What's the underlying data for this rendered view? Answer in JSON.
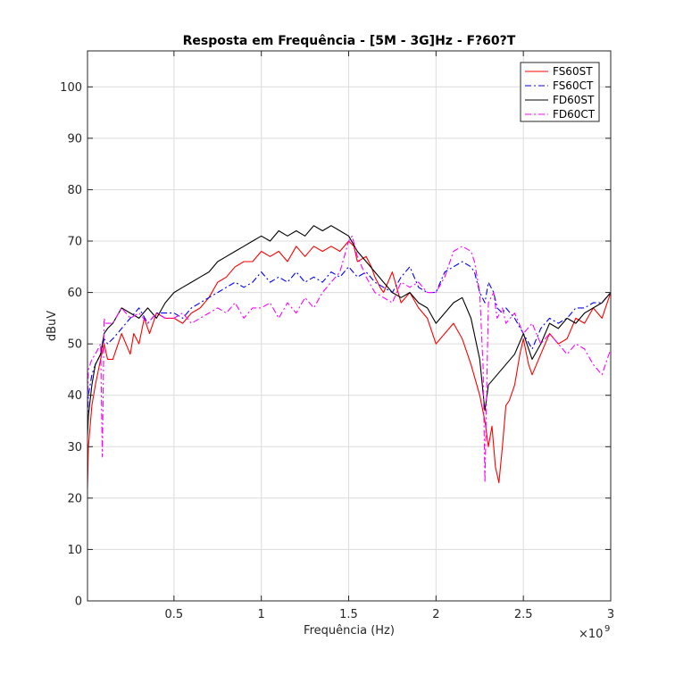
{
  "chart_data": {
    "type": "line",
    "title": "Resposta em Frequência - [5M - 3G]Hz - F?60?T",
    "xlabel": "Frequência (Hz)",
    "ylabel": "dBuV",
    "x_exponent_label": "×10",
    "x_exponent_power": "9",
    "xlim": [
      0.005,
      3.0
    ],
    "ylim": [
      0,
      107
    ],
    "x_ticks": [
      0.5,
      1,
      1.5,
      2,
      2.5,
      3
    ],
    "x_tick_labels": [
      "0.5",
      "1",
      "1.5",
      "2",
      "2.5",
      "3"
    ],
    "y_ticks": [
      0,
      10,
      20,
      30,
      40,
      50,
      60,
      70,
      80,
      90,
      100
    ],
    "y_tick_labels": [
      "0",
      "10",
      "20",
      "30",
      "40",
      "50",
      "60",
      "70",
      "80",
      "90",
      "100"
    ],
    "grid": true,
    "legend_position": "top-right",
    "series": [
      {
        "name": "FS60ST",
        "color": "#ff0000",
        "dash": "solid",
        "x": [
          0.005,
          0.01,
          0.03,
          0.05,
          0.08,
          0.1,
          0.12,
          0.15,
          0.2,
          0.25,
          0.27,
          0.3,
          0.33,
          0.36,
          0.4,
          0.45,
          0.5,
          0.55,
          0.6,
          0.65,
          0.7,
          0.75,
          0.8,
          0.85,
          0.9,
          0.95,
          1.0,
          1.05,
          1.1,
          1.15,
          1.2,
          1.25,
          1.3,
          1.35,
          1.4,
          1.45,
          1.5,
          1.53,
          1.55,
          1.6,
          1.63,
          1.65,
          1.68,
          1.7,
          1.75,
          1.8,
          1.85,
          1.9,
          1.95,
          2.0,
          2.05,
          2.1,
          2.15,
          2.2,
          2.25,
          2.28,
          2.3,
          2.32,
          2.34,
          2.36,
          2.38,
          2.4,
          2.42,
          2.45,
          2.48,
          2.5,
          2.53,
          2.55,
          2.6,
          2.65,
          2.7,
          2.75,
          2.8,
          2.85,
          2.9,
          2.95,
          3.0
        ],
        "y": [
          22,
          30,
          38,
          42,
          47,
          50,
          47,
          47,
          52,
          48,
          52,
          50,
          55,
          52,
          56,
          55,
          55,
          54,
          56,
          57,
          59,
          62,
          63,
          65,
          66,
          66,
          68,
          67,
          68,
          66,
          69,
          67,
          69,
          68,
          69,
          68,
          70,
          69,
          66,
          67,
          65,
          63,
          61,
          60,
          64,
          58,
          60,
          57,
          55,
          50,
          52,
          54,
          51,
          46,
          40,
          35,
          30,
          34,
          26,
          23,
          30,
          38,
          39,
          42,
          48,
          51,
          46,
          44,
          48,
          52,
          50,
          51,
          55,
          54,
          57,
          55,
          60
        ]
      },
      {
        "name": "FS60CT",
        "color": "#0000ff",
        "dash": "dashdot",
        "x": [
          0.005,
          0.01,
          0.03,
          0.05,
          0.08,
          0.1,
          0.12,
          0.15,
          0.2,
          0.25,
          0.3,
          0.35,
          0.4,
          0.45,
          0.5,
          0.55,
          0.6,
          0.65,
          0.7,
          0.75,
          0.8,
          0.85,
          0.9,
          0.95,
          1.0,
          1.05,
          1.1,
          1.15,
          1.2,
          1.25,
          1.3,
          1.35,
          1.4,
          1.45,
          1.5,
          1.55,
          1.6,
          1.65,
          1.7,
          1.75,
          1.8,
          1.85,
          1.9,
          1.95,
          2.0,
          2.05,
          2.1,
          2.15,
          2.2,
          2.22,
          2.25,
          2.28,
          2.3,
          2.33,
          2.35,
          2.38,
          2.4,
          2.45,
          2.5,
          2.55,
          2.6,
          2.65,
          2.7,
          2.75,
          2.8,
          2.85,
          2.9,
          2.95,
          3.0
        ],
        "y": [
          35,
          40,
          44,
          46,
          48,
          51,
          50,
          51,
          53,
          55,
          57,
          54,
          56,
          56,
          56,
          55,
          57,
          58,
          59,
          60,
          61,
          62,
          61,
          62,
          64,
          62,
          63,
          62,
          64,
          62,
          63,
          62,
          64,
          63,
          65,
          63,
          64,
          62,
          61,
          60,
          63,
          65,
          61,
          60,
          60,
          64,
          65,
          66,
          65,
          64,
          60,
          58,
          62,
          60,
          57,
          56,
          57,
          55,
          52,
          49,
          53,
          55,
          54,
          55,
          57,
          57,
          58,
          58,
          60
        ]
      },
      {
        "name": "FD60ST",
        "color": "#000000",
        "dash": "solid",
        "x": [
          0.005,
          0.01,
          0.03,
          0.05,
          0.08,
          0.1,
          0.12,
          0.15,
          0.2,
          0.25,
          0.3,
          0.35,
          0.4,
          0.45,
          0.5,
          0.55,
          0.6,
          0.65,
          0.7,
          0.75,
          0.8,
          0.85,
          0.9,
          0.95,
          1.0,
          1.05,
          1.1,
          1.15,
          1.2,
          1.25,
          1.3,
          1.35,
          1.4,
          1.45,
          1.5,
          1.55,
          1.6,
          1.65,
          1.7,
          1.75,
          1.8,
          1.85,
          1.9,
          1.95,
          2.0,
          2.05,
          2.1,
          2.15,
          2.2,
          2.25,
          2.28,
          2.3,
          2.35,
          2.4,
          2.45,
          2.5,
          2.55,
          2.6,
          2.65,
          2.7,
          2.75,
          2.8,
          2.85,
          2.9,
          2.95,
          3.0
        ],
        "y": [
          32,
          36,
          42,
          46,
          48,
          52,
          53,
          54,
          57,
          56,
          55,
          57,
          55,
          58,
          60,
          61,
          62,
          63,
          64,
          66,
          67,
          68,
          69,
          70,
          71,
          70,
          72,
          71,
          72,
          71,
          73,
          72,
          73,
          72,
          71,
          68,
          66,
          64,
          62,
          60,
          59,
          60,
          58,
          57,
          54,
          56,
          58,
          59,
          55,
          47,
          37,
          42,
          44,
          46,
          48,
          52,
          47,
          50,
          54,
          53,
          55,
          54,
          56,
          57,
          58,
          60
        ]
      },
      {
        "name": "FD60CT",
        "color": "#ff00ff",
        "dash": "dashdot",
        "x": [
          0.005,
          0.01,
          0.03,
          0.05,
          0.08,
          0.09,
          0.1,
          0.11,
          0.15,
          0.2,
          0.25,
          0.3,
          0.35,
          0.4,
          0.45,
          0.5,
          0.55,
          0.6,
          0.65,
          0.7,
          0.75,
          0.8,
          0.85,
          0.9,
          0.95,
          1.0,
          1.05,
          1.1,
          1.15,
          1.2,
          1.25,
          1.3,
          1.35,
          1.4,
          1.45,
          1.5,
          1.52,
          1.55,
          1.6,
          1.65,
          1.7,
          1.75,
          1.8,
          1.85,
          1.9,
          1.95,
          2.0,
          2.05,
          2.1,
          2.15,
          2.2,
          2.22,
          2.25,
          2.27,
          2.28,
          2.3,
          2.33,
          2.35,
          2.38,
          2.4,
          2.45,
          2.5,
          2.55,
          2.6,
          2.65,
          2.7,
          2.75,
          2.8,
          2.85,
          2.9,
          2.95,
          3.0
        ],
        "y": [
          38,
          45,
          47,
          48,
          50,
          28,
          55,
          54,
          54,
          57,
          55,
          56,
          54,
          56,
          55,
          55,
          56,
          54,
          55,
          56,
          57,
          56,
          58,
          55,
          57,
          57,
          58,
          55,
          58,
          56,
          59,
          57,
          60,
          62,
          64,
          70,
          71,
          67,
          63,
          60,
          59,
          58,
          62,
          61,
          62,
          60,
          60,
          63,
          68,
          69,
          68,
          66,
          60,
          45,
          23,
          58,
          60,
          55,
          57,
          54,
          56,
          52,
          54,
          50,
          52,
          50,
          48,
          50,
          49,
          46,
          44,
          49
        ]
      }
    ]
  }
}
